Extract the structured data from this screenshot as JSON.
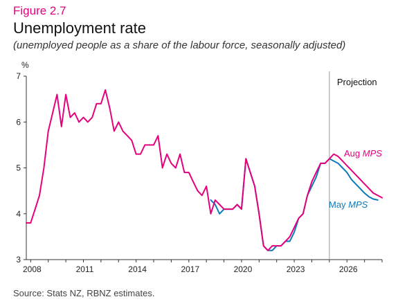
{
  "figure_label": "Figure 2.7",
  "title": "Unemployment rate",
  "subtitle": "(unemployed people as a share of the labour force, seasonally adjusted)",
  "source": "Source: Stats NZ, RBNZ estimates.",
  "colors": {
    "aug": "#e5007d",
    "may": "#0a7ab8",
    "axis": "#333333",
    "divider": "#9a9a9a"
  },
  "chart_data": {
    "type": "line",
    "title": "Unemployment rate",
    "ylabel": "%",
    "xlabel": "",
    "ylim": [
      3,
      7
    ],
    "yticks": [
      3,
      4,
      5,
      6,
      7
    ],
    "xlim": [
      2007.75,
      2028.0
    ],
    "xticks": [
      2008,
      2011,
      2014,
      2017,
      2020,
      2023,
      2026
    ],
    "grid": false,
    "projection": {
      "label": "Projection",
      "start": 2025.0
    },
    "series": [
      {
        "name": "Aug MPS",
        "label_html": "Aug <i>MPS</i>",
        "color": "#e5007d",
        "x": [
          2007.75,
          2008.0,
          2008.25,
          2008.5,
          2008.75,
          2009.0,
          2009.25,
          2009.5,
          2009.75,
          2010.0,
          2010.25,
          2010.5,
          2010.75,
          2011.0,
          2011.25,
          2011.5,
          2011.75,
          2012.0,
          2012.25,
          2012.5,
          2012.75,
          2013.0,
          2013.25,
          2013.5,
          2013.75,
          2014.0,
          2014.25,
          2014.5,
          2014.75,
          2015.0,
          2015.25,
          2015.5,
          2015.75,
          2016.0,
          2016.25,
          2016.5,
          2016.75,
          2017.0,
          2017.25,
          2017.5,
          2017.75,
          2018.0,
          2018.25,
          2018.5,
          2018.75,
          2019.0,
          2019.25,
          2019.5,
          2019.75,
          2020.0,
          2020.25,
          2020.5,
          2020.75,
          2021.0,
          2021.25,
          2021.5,
          2021.75,
          2022.0,
          2022.25,
          2022.5,
          2022.75,
          2023.0,
          2023.25,
          2023.5,
          2023.75,
          2024.0,
          2024.25,
          2024.5,
          2024.75,
          2025.0,
          2025.25,
          2025.5,
          2025.75,
          2026.0,
          2026.25,
          2026.5,
          2026.75,
          2027.0,
          2027.25,
          2027.5,
          2027.75,
          2028.0
        ],
        "values": [
          3.8,
          3.8,
          4.1,
          4.4,
          5.0,
          5.8,
          6.2,
          6.6,
          5.9,
          6.6,
          6.1,
          6.2,
          6.0,
          6.1,
          6.0,
          6.1,
          6.4,
          6.4,
          6.7,
          6.3,
          5.8,
          6.0,
          5.8,
          5.7,
          5.6,
          5.3,
          5.3,
          5.5,
          5.5,
          5.5,
          5.7,
          5.0,
          5.3,
          5.1,
          5.0,
          5.3,
          4.9,
          4.9,
          4.7,
          4.5,
          4.4,
          4.6,
          4.0,
          4.3,
          4.2,
          4.1,
          4.1,
          4.1,
          4.2,
          4.1,
          5.2,
          4.9,
          4.6,
          4.0,
          3.3,
          3.2,
          3.3,
          3.3,
          3.3,
          3.4,
          3.5,
          3.7,
          3.9,
          4.0,
          4.4,
          4.7,
          4.9,
          5.1,
          5.1,
          5.2,
          5.3,
          5.25,
          5.15,
          5.05,
          4.95,
          4.85,
          4.75,
          4.65,
          4.55,
          4.45,
          4.4,
          4.35
        ]
      },
      {
        "name": "May MPS",
        "label_html": "May <i>MPS</i>",
        "color": "#0a7ab8",
        "x": [
          2018.25,
          2018.5,
          2018.75,
          2019.0,
          2019.25,
          2019.5,
          2019.75,
          2020.0,
          2020.25,
          2020.5,
          2020.75,
          2021.0,
          2021.25,
          2021.5,
          2021.75,
          2022.0,
          2022.25,
          2022.5,
          2022.75,
          2023.0,
          2023.25,
          2023.5,
          2023.75,
          2024.0,
          2024.25,
          2024.5,
          2024.75,
          2025.0,
          2025.25,
          2025.5,
          2025.75,
          2026.0,
          2026.25,
          2026.5,
          2026.75,
          2027.0,
          2027.25,
          2027.5,
          2027.75
        ],
        "values": [
          4.3,
          4.2,
          4.0,
          4.1,
          4.1,
          4.1,
          4.2,
          4.1,
          5.2,
          4.9,
          4.6,
          4.0,
          3.3,
          3.2,
          3.2,
          3.3,
          3.3,
          3.4,
          3.4,
          3.6,
          3.9,
          4.0,
          4.4,
          4.6,
          4.8,
          5.1,
          5.1,
          5.2,
          5.15,
          5.1,
          5.0,
          4.9,
          4.75,
          4.65,
          4.55,
          4.45,
          4.37,
          4.32,
          4.3
        ]
      }
    ]
  }
}
